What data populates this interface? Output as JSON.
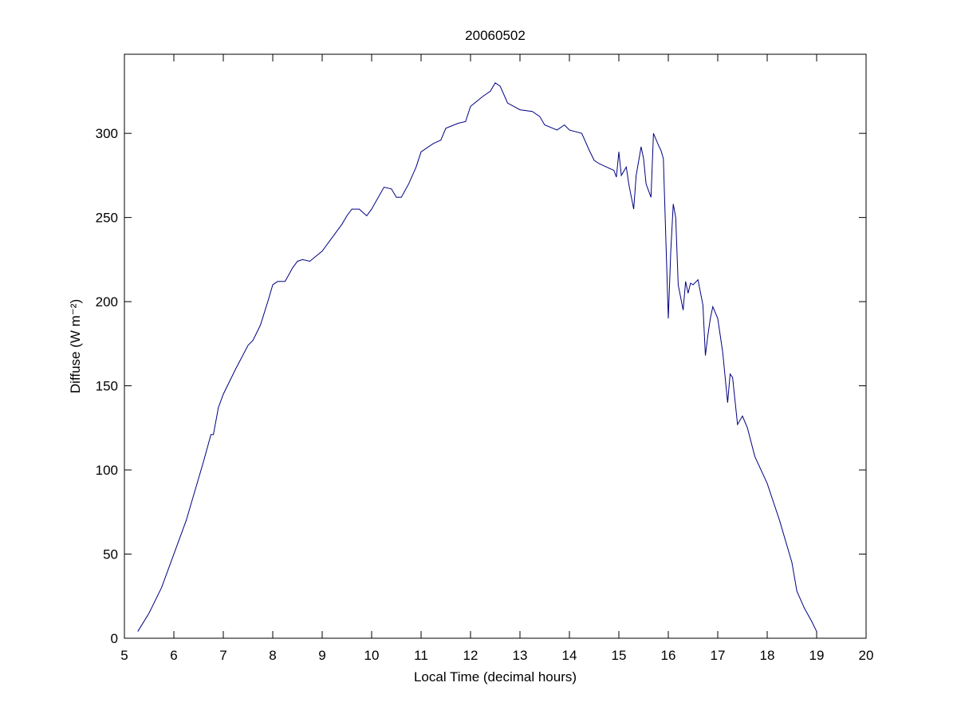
{
  "chart_data": {
    "type": "line",
    "title": "20060502",
    "xlabel": "Local Time (decimal hours)",
    "ylabel": "Diffuse (W m⁻²)",
    "x": [
      5.27,
      5.5,
      5.75,
      6.0,
      6.25,
      6.5,
      6.6,
      6.75,
      6.8,
      6.9,
      7.0,
      7.25,
      7.5,
      7.6,
      7.75,
      7.9,
      8.0,
      8.1,
      8.25,
      8.4,
      8.5,
      8.6,
      8.75,
      9.0,
      9.25,
      9.4,
      9.5,
      9.6,
      9.75,
      9.9,
      10.0,
      10.25,
      10.4,
      10.5,
      10.6,
      10.75,
      10.9,
      11.0,
      11.25,
      11.4,
      11.5,
      11.75,
      11.9,
      12.0,
      12.25,
      12.4,
      12.5,
      12.6,
      12.75,
      13.0,
      13.25,
      13.4,
      13.5,
      13.75,
      13.9,
      14.0,
      14.25,
      14.4,
      14.5,
      14.6,
      14.75,
      14.9,
      14.95,
      15.0,
      15.05,
      15.15,
      15.2,
      15.3,
      15.35,
      15.45,
      15.5,
      15.55,
      15.65,
      15.7,
      15.8,
      15.85,
      15.9,
      16.0,
      16.05,
      16.1,
      16.15,
      16.2,
      16.3,
      16.35,
      16.4,
      16.45,
      16.5,
      16.6,
      16.7,
      16.75,
      16.8,
      16.85,
      16.9,
      17.0,
      17.1,
      17.2,
      17.25,
      17.3,
      17.4,
      17.5,
      17.6,
      17.75,
      18.0,
      18.25,
      18.5,
      18.6,
      18.75,
      18.9,
      19.0
    ],
    "series": [
      {
        "name": "Diffuse",
        "color": "#000080",
        "values": [
          4,
          15,
          30,
          50,
          70,
          95,
          105,
          121,
          121,
          137,
          145,
          160,
          174,
          177,
          186,
          200,
          210,
          212,
          212,
          220,
          224,
          225,
          224,
          230,
          240,
          246,
          251,
          255,
          255,
          251,
          255,
          268,
          267,
          262,
          262,
          270,
          280,
          289,
          294,
          296,
          303,
          306,
          307,
          316,
          322,
          325,
          330,
          328,
          318,
          314,
          313,
          310,
          305,
          302,
          305,
          302,
          300,
          290,
          284,
          282,
          280,
          278,
          274,
          289,
          275,
          280,
          270,
          255,
          275,
          292,
          285,
          270,
          262,
          300,
          293,
          290,
          285,
          190,
          230,
          258,
          250,
          210,
          195,
          212,
          205,
          211,
          210,
          213,
          198,
          168,
          180,
          190,
          197,
          190,
          170,
          140,
          157,
          155,
          127,
          132,
          125,
          108,
          92,
          70,
          45,
          28,
          18,
          10,
          4
        ]
      }
    ],
    "xlim": [
      5,
      20
    ],
    "xticks": [
      5,
      6,
      7,
      8,
      9,
      10,
      11,
      12,
      13,
      14,
      15,
      16,
      17,
      18,
      19,
      20
    ],
    "ylim": [
      0,
      347
    ],
    "yticks": [
      0,
      50,
      100,
      150,
      200,
      250,
      300
    ],
    "grid": false
  }
}
